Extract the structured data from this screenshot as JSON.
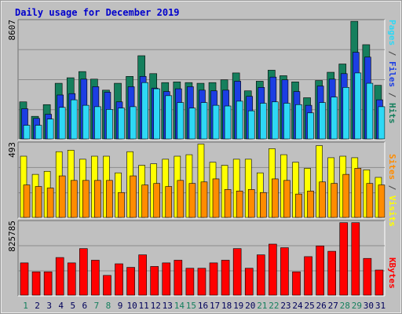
{
  "chart_data": {
    "type": "bar",
    "title": "Daily usage for December 2019",
    "categories": [
      "1",
      "2",
      "3",
      "4",
      "5",
      "6",
      "7",
      "8",
      "9",
      "10",
      "11",
      "12",
      "13",
      "14",
      "15",
      "16",
      "17",
      "18",
      "19",
      "20",
      "21",
      "22",
      "23",
      "24",
      "25",
      "26",
      "27",
      "28",
      "29",
      "30",
      "31"
    ],
    "weekend_days": [
      1,
      7,
      8,
      14,
      15,
      21,
      22,
      28,
      29
    ],
    "panels": [
      {
        "id": "top",
        "max_label": "8607",
        "ymax": 8607,
        "series": [
          {
            "name": "Hits",
            "color": "#157f5d",
            "values": [
              2750,
              1700,
              2550,
              4100,
              4500,
              4950,
              4400,
              3600,
              4100,
              4600,
              6100,
              4800,
              4150,
              4200,
              4150,
              4100,
              4150,
              4350,
              4850,
              3550,
              4250,
              5050,
              4650,
              4200,
              3050,
              4300,
              4900,
              5500,
              8600,
              6900,
              3950
            ]
          },
          {
            "name": "Files",
            "color": "#1c3ee3",
            "values": [
              2250,
              1550,
              1850,
              3250,
              3350,
              4400,
              3850,
              3450,
              2750,
              3850,
              4600,
              3750,
              3500,
              3700,
              3850,
              3600,
              3550,
              3600,
              4250,
              3150,
              3800,
              4550,
              4350,
              3500,
              2500,
              3900,
              4400,
              4800,
              6350,
              6000,
              2900
            ]
          },
          {
            "name": "Pages",
            "color": "#2ed8f5",
            "values": [
              1050,
              1050,
              1500,
              2350,
              2900,
              2500,
              2400,
              2200,
              2300,
              2400,
              4150,
              3700,
              3200,
              2700,
              2300,
              2700,
              2500,
              2450,
              2800,
              2100,
              2650,
              2750,
              2650,
              2550,
              1950,
              2700,
              3100,
              3800,
              4850,
              4100,
              2400
            ]
          }
        ],
        "right_label_parts": [
          {
            "text": "Pages",
            "color": "#2ed8f5"
          },
          {
            "text": " / ",
            "color": "#444444"
          },
          {
            "text": "Files",
            "color": "#1c3ee3"
          },
          {
            "text": " / ",
            "color": "#444444"
          },
          {
            "text": "Hits",
            "color": "#157f5d"
          }
        ]
      },
      {
        "id": "middle",
        "max_label": "493",
        "ymax": 493,
        "series": [
          {
            "name": "Visits",
            "color": "#ffff00",
            "values": [
              410,
              290,
              310,
              440,
              450,
              390,
              410,
              410,
              300,
              440,
              350,
              360,
              390,
              410,
              420,
              490,
              370,
              350,
              390,
              390,
              300,
              460,
              420,
              370,
              330,
              480,
              400,
              410,
              400,
              320,
              270
            ]
          },
          {
            "name": "Sites",
            "color": "#ff8c00",
            "values": [
              220,
              210,
              200,
              280,
              250,
              250,
              250,
              250,
              170,
              280,
              220,
              230,
              210,
              250,
              230,
              240,
              260,
              190,
              180,
              190,
              170,
              260,
              250,
              160,
              180,
              240,
              230,
              290,
              330,
              230,
              220
            ]
          }
        ],
        "right_label_parts": [
          {
            "text": "Sites",
            "color": "#ff8c00"
          },
          {
            "text": " / ",
            "color": "#444444"
          },
          {
            "text": "Visits",
            "color": "#ffff00"
          }
        ]
      },
      {
        "id": "bottom",
        "max_label": "825785",
        "ymax": 825785,
        "series": [
          {
            "name": "KBytes",
            "color": "#ff0000",
            "values": [
              370000,
              270000,
              270000,
              430000,
              370000,
              530000,
              400000,
              230000,
              360000,
              320000,
              460000,
              330000,
              370000,
              400000,
              310000,
              310000,
              370000,
              400000,
              530000,
              310000,
              460000,
              580000,
              540000,
              270000,
              440000,
              560000,
              500000,
              820000,
              820000,
              420000,
              290000
            ]
          }
        ],
        "right_label_parts": [
          {
            "text": "KBytes",
            "color": "#ff0000"
          }
        ]
      }
    ]
  },
  "colors": {
    "background": "#c0c0c0",
    "title": "#0000cc",
    "weekday_label": "#00005a",
    "weekend_label": "#157f5d",
    "gridline": "#8c8c8c"
  }
}
